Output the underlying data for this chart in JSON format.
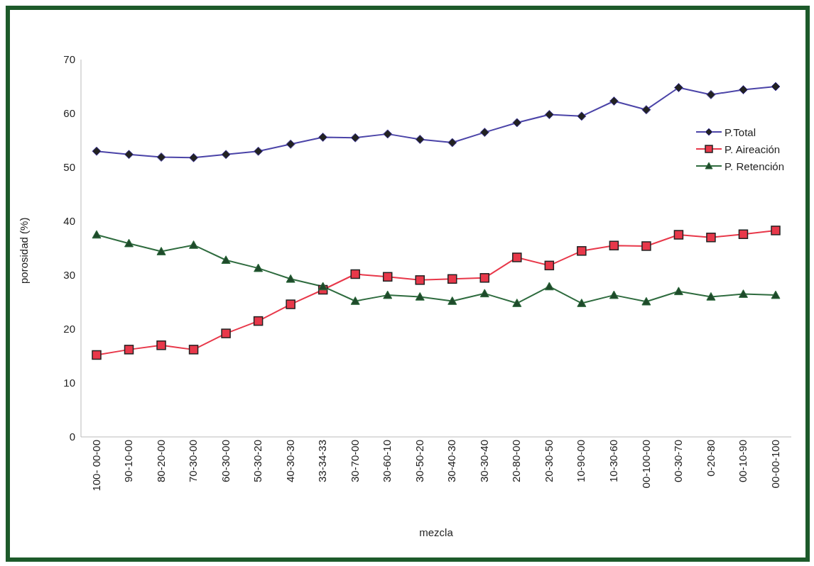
{
  "chart_data": {
    "type": "line",
    "xlabel": "mezcla",
    "ylabel": "porosidad (%)",
    "categories": [
      "100- 00-00",
      "90-10-00",
      "80-20-00",
      "70-30-00",
      "60-30-00",
      "50-30-20",
      "40-30-30",
      "33-34-33",
      "30-70-00",
      "30-60-10",
      "30-50-20",
      "30-40-30",
      "30-30-40",
      "20-80-00",
      "20-30-50",
      "10-90-00",
      "10-30-60",
      "00-100-00",
      "00-30-70",
      "0-20-80",
      "00-10-90",
      "00-00-100"
    ],
    "series": [
      {
        "name": "P.Total",
        "color": "#4b44a8",
        "marker": "diamond",
        "values": [
          53,
          52.4,
          51.9,
          51.8,
          52.4,
          53,
          54.3,
          55.6,
          55.5,
          56.2,
          55.2,
          54.6,
          56.5,
          58.3,
          59.8,
          59.5,
          62.3,
          60.7,
          64.8,
          63.5,
          64.4,
          65
        ]
      },
      {
        "name": "P. Aireación",
        "color": "#e8384a",
        "marker": "square",
        "values": [
          15.2,
          16.2,
          17,
          16.2,
          19.2,
          21.5,
          24.6,
          27.3,
          30.2,
          29.7,
          29.1,
          29.3,
          29.5,
          33.3,
          31.8,
          34.5,
          35.5,
          35.4,
          37.5,
          37,
          37.6,
          38.3
        ]
      },
      {
        "name": "P. Retención",
        "color": "#2e6b3e",
        "marker": "triangle",
        "values": [
          37.5,
          35.9,
          34.4,
          35.6,
          32.8,
          31.3,
          29.3,
          27.9,
          25.2,
          26.3,
          26,
          25.2,
          26.6,
          24.8,
          27.9,
          24.8,
          26.3,
          25.1,
          27,
          26,
          26.5,
          26.3
        ]
      }
    ],
    "ylim": [
      0,
      70
    ],
    "yticks": [
      0,
      10,
      20,
      30,
      40,
      50,
      60,
      70
    ],
    "grid": false,
    "legend": "top right"
  }
}
